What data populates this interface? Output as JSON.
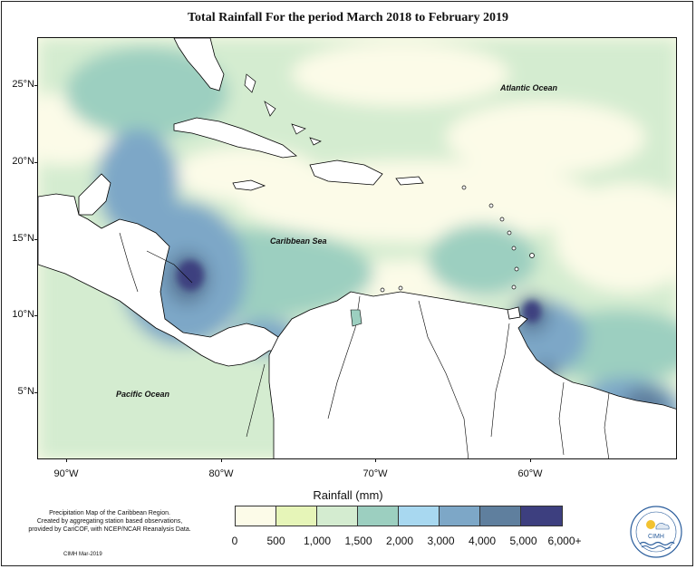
{
  "title": "Total Rainfall For the period March 2018 to February 2019",
  "map_labels": {
    "atlantic": "Atlantic Ocean",
    "caribbean": "Caribbean Sea",
    "pacific": "Pacific Ocean"
  },
  "lat_labels": [
    "25°N",
    "20°N",
    "15°N",
    "10°N",
    "5°N"
  ],
  "lon_labels": [
    "90°W",
    "80°W",
    "70°W",
    "60°W"
  ],
  "axis_title": "Rainfall (mm)",
  "legend": {
    "labels": [
      "0",
      "500",
      "1,000",
      "1,500",
      "2,000",
      "3,000",
      "4,000",
      "5,000",
      "6,000+"
    ],
    "colors": [
      "#fcfbe8",
      "#e6f5b8",
      "#d4ecd0",
      "#9ccfc0",
      "#a8d8f0",
      "#7da7c7",
      "#5f7f9e",
      "#3d3f7f"
    ]
  },
  "footnote": {
    "line1": "Precipitation Map of the Caribbean Region.",
    "line2": "Created by aggregating station based observations,",
    "line3": "provided by CariCOF, with NCEP/NCAR Reanalysis Data.",
    "credit": "CIMH Mar-2019"
  },
  "logo": {
    "text": "CIMH"
  }
}
